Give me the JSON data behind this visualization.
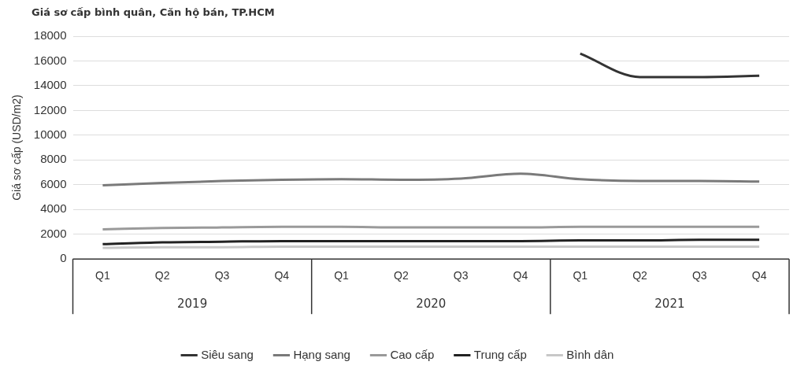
{
  "chart_data": {
    "type": "line",
    "title": "Giá sơ cấp bình quân, Căn hộ bán, TP.HCM",
    "ylabel": "Giá sơ cấp (USD/m2)",
    "categories": [
      "Q1",
      "Q2",
      "Q3",
      "Q4",
      "Q1",
      "Q2",
      "Q3",
      "Q4",
      "Q1",
      "Q2",
      "Q3",
      "Q4"
    ],
    "annotations": [
      "2019",
      "2020",
      "2021"
    ],
    "series": [
      {
        "name": "Siêu sang",
        "color": "#333333",
        "values": [
          null,
          null,
          null,
          null,
          null,
          null,
          null,
          null,
          16600,
          14700,
          14700,
          14800
        ]
      },
      {
        "name": "Hạng sang",
        "color": "#7a7a7a",
        "values": [
          5950,
          6150,
          6300,
          6400,
          6450,
          6400,
          6500,
          6900,
          6450,
          6300,
          6300,
          6250
        ]
      },
      {
        "name": "Cao cấp",
        "color": "#9a9a9a",
        "values": [
          2400,
          2500,
          2550,
          2600,
          2600,
          2550,
          2550,
          2550,
          2600,
          2600,
          2600,
          2600
        ]
      },
      {
        "name": "Trung cấp",
        "color": "#222222",
        "values": [
          1200,
          1350,
          1400,
          1450,
          1450,
          1450,
          1450,
          1450,
          1500,
          1500,
          1550,
          1550
        ]
      },
      {
        "name": "Bình dân",
        "color": "#c8c8c8",
        "values": [
          900,
          950,
          950,
          1000,
          1000,
          1000,
          1000,
          1000,
          1000,
          1000,
          1000,
          1000
        ]
      }
    ],
    "ylim": [
      0,
      18000
    ],
    "yticks": [
      0,
      2000,
      4000,
      6000,
      8000,
      10000,
      12000,
      14000,
      16000,
      18000
    ],
    "grid": "y",
    "legend": "bottom",
    "marker": "none",
    "line_style": "solid"
  }
}
